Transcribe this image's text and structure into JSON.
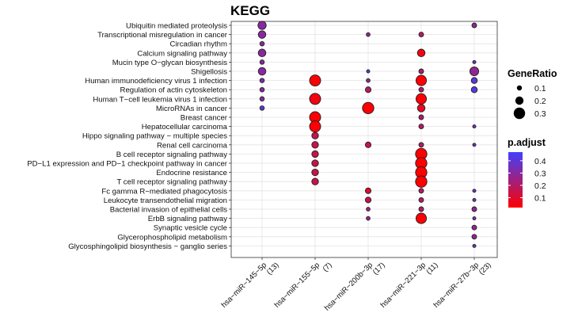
{
  "chart_data": {
    "type": "scatter",
    "title": "KEGG",
    "xlabel": "",
    "ylabel": "",
    "grid": true,
    "legend_position": "right",
    "x_categories": [
      "hsa−miR−145−5p\n(13)",
      "hsa−miR−155−5p\n(7)",
      "hsa−miR−200b−3p\n(17)",
      "hsa−miR−221−3p\n(11)",
      "hsa−miR−27b−3p\n(23)"
    ],
    "y_categories": [
      "Ubiquitin mediated proteolysis",
      "Transcriptional misregulation in cancer",
      "Circadian rhythm",
      "Calcium signaling pathway",
      "Mucin type O−glycan biosynthesis",
      "Shigellosis",
      "Human immunodeficiency virus 1 infection",
      "Regulation of actin cytoskeleton",
      "Human T−cell leukemia virus 1 infection",
      "MicroRNAs in cancer",
      "Breast cancer",
      "Hepatocellular carcinoma",
      "Hippo signaling pathway − multiple species",
      "Renal cell carcinoma",
      "B cell receptor signaling pathway",
      "PD−L1 expression and PD−1 checkpoint pathway in cancer",
      "Endocrine resistance",
      "T cell receptor signaling pathway",
      "Fc gamma R−mediated phagocytosis",
      "Leukocyte transendothelial migration",
      "Bacterial invasion of epithelial cells",
      "ErbB signaling pathway",
      "Synaptic vesicle cycle",
      "Glycerophospholipid metabolism",
      "Glycosphingolipid biosynthesis − ganglio series"
    ],
    "points": [
      {
        "x": 0,
        "y": 0,
        "gene_ratio": 0.2,
        "p_adjust": 0.3
      },
      {
        "x": 0,
        "y": 1,
        "gene_ratio": 0.18,
        "p_adjust": 0.3
      },
      {
        "x": 0,
        "y": 2,
        "gene_ratio": 0.08,
        "p_adjust": 0.3
      },
      {
        "x": 0,
        "y": 3,
        "gene_ratio": 0.18,
        "p_adjust": 0.3
      },
      {
        "x": 0,
        "y": 4,
        "gene_ratio": 0.08,
        "p_adjust": 0.3
      },
      {
        "x": 0,
        "y": 5,
        "gene_ratio": 0.18,
        "p_adjust": 0.3
      },
      {
        "x": 0,
        "y": 6,
        "gene_ratio": 0.08,
        "p_adjust": 0.32
      },
      {
        "x": 0,
        "y": 7,
        "gene_ratio": 0.08,
        "p_adjust": 0.3
      },
      {
        "x": 0,
        "y": 8,
        "gene_ratio": 0.08,
        "p_adjust": 0.3
      },
      {
        "x": 0,
        "y": 9,
        "gene_ratio": 0.08,
        "p_adjust": 0.4
      },
      {
        "x": 1,
        "y": 6,
        "gene_ratio": 0.29,
        "p_adjust": 0.03
      },
      {
        "x": 1,
        "y": 8,
        "gene_ratio": 0.29,
        "p_adjust": 0.05
      },
      {
        "x": 1,
        "y": 10,
        "gene_ratio": 0.29,
        "p_adjust": 0.03
      },
      {
        "x": 1,
        "y": 11,
        "gene_ratio": 0.29,
        "p_adjust": 0.03
      },
      {
        "x": 1,
        "y": 12,
        "gene_ratio": 0.15,
        "p_adjust": 0.15
      },
      {
        "x": 1,
        "y": 13,
        "gene_ratio": 0.15,
        "p_adjust": 0.15
      },
      {
        "x": 1,
        "y": 14,
        "gene_ratio": 0.15,
        "p_adjust": 0.15
      },
      {
        "x": 1,
        "y": 15,
        "gene_ratio": 0.15,
        "p_adjust": 0.15
      },
      {
        "x": 1,
        "y": 16,
        "gene_ratio": 0.15,
        "p_adjust": 0.15
      },
      {
        "x": 1,
        "y": 17,
        "gene_ratio": 0.15,
        "p_adjust": 0.15
      },
      {
        "x": 2,
        "y": 1,
        "gene_ratio": 0.06,
        "p_adjust": 0.28
      },
      {
        "x": 2,
        "y": 6,
        "gene_ratio": 0.06,
        "p_adjust": 0.28
      },
      {
        "x": 2,
        "y": 7,
        "gene_ratio": 0.12,
        "p_adjust": 0.2
      },
      {
        "x": 2,
        "y": 9,
        "gene_ratio": 0.3,
        "p_adjust": 0.02
      },
      {
        "x": 2,
        "y": 13,
        "gene_ratio": 0.12,
        "p_adjust": 0.15
      },
      {
        "x": 2,
        "y": 18,
        "gene_ratio": 0.12,
        "p_adjust": 0.1
      },
      {
        "x": 2,
        "y": 19,
        "gene_ratio": 0.12,
        "p_adjust": 0.15
      },
      {
        "x": 2,
        "y": 20,
        "gene_ratio": 0.06,
        "p_adjust": 0.25
      },
      {
        "x": 2,
        "y": 21,
        "gene_ratio": 0.06,
        "p_adjust": 0.25
      },
      {
        "x": 2,
        "y": 5,
        "gene_ratio": 0.04,
        "p_adjust": 0.43
      },
      {
        "x": 3,
        "y": 1,
        "gene_ratio": 0.09,
        "p_adjust": 0.2
      },
      {
        "x": 3,
        "y": 3,
        "gene_ratio": 0.18,
        "p_adjust": 0.05
      },
      {
        "x": 3,
        "y": 5,
        "gene_ratio": 0.09,
        "p_adjust": 0.22
      },
      {
        "x": 3,
        "y": 6,
        "gene_ratio": 0.27,
        "p_adjust": 0.03
      },
      {
        "x": 3,
        "y": 7,
        "gene_ratio": 0.09,
        "p_adjust": 0.2
      },
      {
        "x": 3,
        "y": 8,
        "gene_ratio": 0.27,
        "p_adjust": 0.03
      },
      {
        "x": 3,
        "y": 9,
        "gene_ratio": 0.18,
        "p_adjust": 0.08
      },
      {
        "x": 3,
        "y": 10,
        "gene_ratio": 0.09,
        "p_adjust": 0.2
      },
      {
        "x": 3,
        "y": 11,
        "gene_ratio": 0.09,
        "p_adjust": 0.2
      },
      {
        "x": 3,
        "y": 13,
        "gene_ratio": 0.09,
        "p_adjust": 0.2
      },
      {
        "x": 3,
        "y": 14,
        "gene_ratio": 0.3,
        "p_adjust": 0.02
      },
      {
        "x": 3,
        "y": 15,
        "gene_ratio": 0.3,
        "p_adjust": 0.02
      },
      {
        "x": 3,
        "y": 16,
        "gene_ratio": 0.3,
        "p_adjust": 0.02
      },
      {
        "x": 3,
        "y": 17,
        "gene_ratio": 0.3,
        "p_adjust": 0.02
      },
      {
        "x": 3,
        "y": 18,
        "gene_ratio": 0.09,
        "p_adjust": 0.2
      },
      {
        "x": 3,
        "y": 19,
        "gene_ratio": 0.09,
        "p_adjust": 0.2
      },
      {
        "x": 3,
        "y": 20,
        "gene_ratio": 0.09,
        "p_adjust": 0.2
      },
      {
        "x": 3,
        "y": 21,
        "gene_ratio": 0.27,
        "p_adjust": 0.03
      },
      {
        "x": 4,
        "y": 0,
        "gene_ratio": 0.09,
        "p_adjust": 0.28
      },
      {
        "x": 4,
        "y": 4,
        "gene_ratio": 0.04,
        "p_adjust": 0.35
      },
      {
        "x": 4,
        "y": 5,
        "gene_ratio": 0.22,
        "p_adjust": 0.28
      },
      {
        "x": 4,
        "y": 6,
        "gene_ratio": 0.13,
        "p_adjust": 0.4
      },
      {
        "x": 4,
        "y": 7,
        "gene_ratio": 0.13,
        "p_adjust": 0.42
      },
      {
        "x": 4,
        "y": 11,
        "gene_ratio": 0.04,
        "p_adjust": 0.35
      },
      {
        "x": 4,
        "y": 13,
        "gene_ratio": 0.04,
        "p_adjust": 0.35
      },
      {
        "x": 4,
        "y": 18,
        "gene_ratio": 0.04,
        "p_adjust": 0.35
      },
      {
        "x": 4,
        "y": 19,
        "gene_ratio": 0.04,
        "p_adjust": 0.35
      },
      {
        "x": 4,
        "y": 20,
        "gene_ratio": 0.09,
        "p_adjust": 0.28
      },
      {
        "x": 4,
        "y": 21,
        "gene_ratio": 0.04,
        "p_adjust": 0.35
      },
      {
        "x": 4,
        "y": 22,
        "gene_ratio": 0.09,
        "p_adjust": 0.28
      },
      {
        "x": 4,
        "y": 23,
        "gene_ratio": 0.09,
        "p_adjust": 0.28
      },
      {
        "x": 4,
        "y": 24,
        "gene_ratio": 0.04,
        "p_adjust": 0.35
      }
    ],
    "size_legend": {
      "title": "GeneRatio",
      "values": [
        0.1,
        0.2,
        0.3
      ],
      "labels": [
        "0.1",
        "0.2",
        "0.3"
      ]
    },
    "color_legend": {
      "title": "p.adjust",
      "range": [
        0.02,
        0.47
      ],
      "ticks": [
        0.1,
        0.2,
        0.3,
        0.4
      ],
      "tick_labels": [
        "0.1",
        "0.2",
        "0.3",
        "0.4"
      ],
      "low_color": "#ff0000",
      "high_color": "#4040ff"
    }
  }
}
